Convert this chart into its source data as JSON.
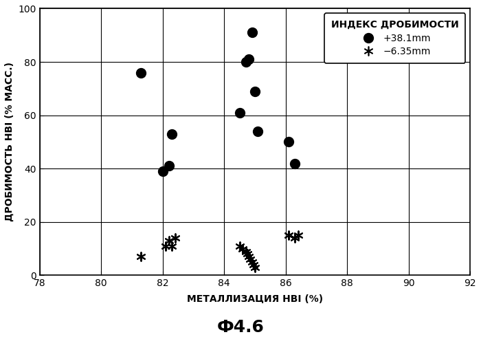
{
  "title": "Ф4.6",
  "xlabel": "МЕТАЛЛИЗАЦИЯ HBI (%)",
  "ylabel": "ДРОБИМОСТЬ HBI (% МАСС.)",
  "xlim": [
    78,
    92
  ],
  "ylim": [
    0,
    100
  ],
  "xticks": [
    78,
    80,
    82,
    84,
    86,
    88,
    90,
    92
  ],
  "yticks": [
    0,
    20,
    40,
    60,
    80,
    100
  ],
  "circle_points": [
    [
      81.3,
      76
    ],
    [
      82.0,
      39
    ],
    [
      82.2,
      41
    ],
    [
      82.3,
      53
    ],
    [
      84.5,
      61
    ],
    [
      84.7,
      80
    ],
    [
      84.8,
      81
    ],
    [
      84.9,
      91
    ],
    [
      85.0,
      69
    ],
    [
      85.1,
      54
    ],
    [
      86.1,
      50
    ],
    [
      86.3,
      42
    ]
  ],
  "star_points": [
    [
      81.3,
      7
    ],
    [
      82.1,
      11
    ],
    [
      82.2,
      13
    ],
    [
      82.3,
      11
    ],
    [
      82.4,
      14
    ],
    [
      84.5,
      11
    ],
    [
      84.6,
      10
    ],
    [
      84.7,
      9
    ],
    [
      84.75,
      8
    ],
    [
      84.8,
      7
    ],
    [
      84.85,
      6
    ],
    [
      84.9,
      5
    ],
    [
      84.95,
      4
    ],
    [
      85.0,
      3
    ],
    [
      86.1,
      15
    ],
    [
      86.3,
      14
    ],
    [
      86.4,
      15
    ]
  ],
  "legend_title": "ИНДЕКС ДРОБИМОСТИ",
  "legend_circle_label": "+38.1mm",
  "legend_star_label": "−6.35mm",
  "circle_color": "#000000",
  "star_color": "#000000",
  "background_color": "#ffffff",
  "grid_color": "#000000",
  "circle_size": 100,
  "star_size": 80,
  "title_fontsize": 18,
  "label_fontsize": 10,
  "tick_fontsize": 10,
  "legend_fontsize": 10
}
